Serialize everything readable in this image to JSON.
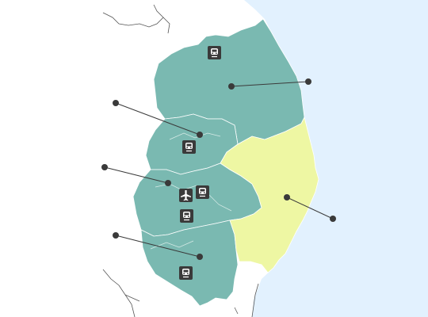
{
  "map": {
    "colors": {
      "sea": "#e2f1fe",
      "land": "#ffffff",
      "border": "#555555",
      "region_main": "#7ab9b1",
      "region_highlight": "#eef7a3",
      "subdivision_line": "#d7ebe7",
      "marker": "#3a3a3a",
      "icon_bg": "#3a3a3a",
      "icon_fg": "#ffffff"
    },
    "regions": [
      {
        "id": "north",
        "fill": "region_main"
      },
      {
        "id": "central-west",
        "fill": "region_main"
      },
      {
        "id": "west",
        "fill": "region_main"
      },
      {
        "id": "south",
        "fill": "region_main"
      },
      {
        "id": "coast",
        "fill": "region_highlight"
      }
    ],
    "callouts": [
      {
        "id": "north",
        "target_region": "north"
      },
      {
        "id": "central-west",
        "target_region": "central-west"
      },
      {
        "id": "west",
        "target_region": "west"
      },
      {
        "id": "south",
        "target_region": "south"
      },
      {
        "id": "coast",
        "target_region": "coast"
      }
    ],
    "icons": [
      {
        "id": "train-north",
        "kind": "train-icon"
      },
      {
        "id": "train-central",
        "kind": "train-icon"
      },
      {
        "id": "airport",
        "kind": "airplane-icon"
      },
      {
        "id": "train-west-1",
        "kind": "train-icon"
      },
      {
        "id": "train-west-2",
        "kind": "train-icon"
      },
      {
        "id": "train-south",
        "kind": "train-icon"
      }
    ]
  }
}
